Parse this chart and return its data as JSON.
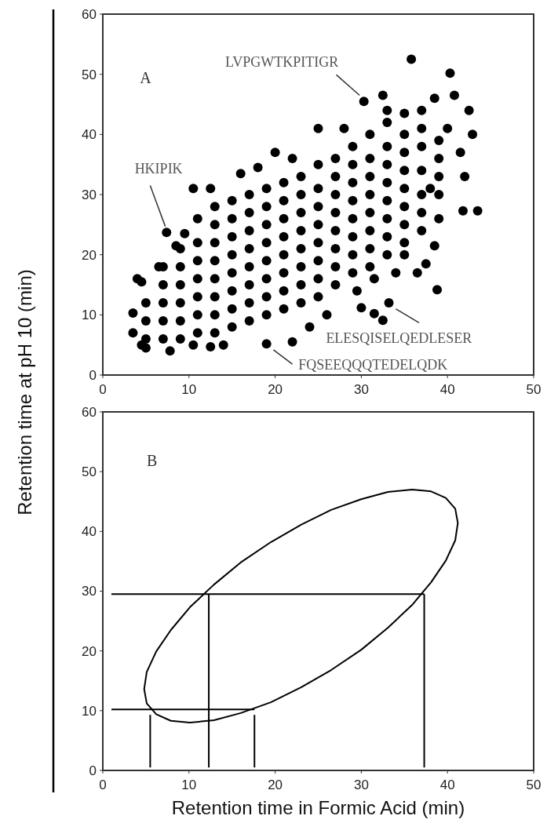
{
  "chart_data": [
    {
      "type": "scatter",
      "ylabel": "Retention time at pH 10 (min)",
      "xlim": [
        0,
        50
      ],
      "ylim": [
        0,
        60
      ],
      "xticks": [
        0,
        10,
        20,
        30,
        40,
        50
      ],
      "yticks": [
        0,
        10,
        20,
        30,
        40,
        50,
        60
      ],
      "marker": "circle",
      "grid": false,
      "annotations": [
        "A",
        {
          "text": "LVPGWTKPITIGR",
          "x": 30.3,
          "y": 45.5
        },
        {
          "text": "HKIPIK",
          "x": 7.4,
          "y": 23.7
        },
        {
          "text": "ELESQISELQEDLESER",
          "x": 33.2,
          "y": 12
        },
        {
          "text": "FQSEEQQQTEDELQDK",
          "x": 19,
          "y": 5.2
        }
      ],
      "series": [
        {
          "color": "#000000",
          "x": [
            3.5,
            3.5,
            4,
            4.5,
            4.5,
            5,
            6.5,
            7.4,
            7.8,
            8.5,
            9.5,
            10.5,
            12.5,
            10.5,
            12.5,
            14,
            16,
            18,
            19,
            20,
            22,
            22,
            24,
            25,
            26,
            28,
            29.5,
            30,
            30.3,
            31.5,
            32.5,
            33.2,
            32.5,
            33,
            35.8,
            35,
            36.5,
            37,
            37.5,
            38,
            38.8,
            38.5,
            40.3,
            40.8,
            42.5,
            42.9,
            41.8,
            43.5,
            41.5,
            42,
            39,
            40,
            38.5,
            34,
            35,
            31.5,
            5,
            5,
            5,
            7,
            7,
            7,
            7,
            7,
            9,
            9,
            9,
            9,
            9,
            9,
            11,
            11,
            11,
            11,
            11,
            11,
            11,
            13,
            13,
            13,
            13,
            13,
            13,
            13,
            13,
            15,
            15,
            15,
            15,
            15,
            15,
            15,
            15,
            17,
            17,
            17,
            17,
            17,
            17,
            17,
            17,
            19,
            19,
            19,
            19,
            19,
            19,
            19,
            19,
            21,
            21,
            21,
            21,
            21,
            21,
            21,
            21,
            23,
            23,
            23,
            23,
            23,
            23,
            23,
            23,
            25,
            25,
            25,
            25,
            25,
            25,
            25,
            25,
            27,
            27,
            27,
            27,
            27,
            27,
            27,
            27,
            29,
            29,
            29,
            29,
            29,
            29,
            29,
            29,
            31,
            31,
            31,
            31,
            31,
            31,
            31,
            31,
            33,
            33,
            33,
            33,
            33,
            33,
            33,
            33,
            35,
            35,
            35,
            35,
            35,
            35,
            35,
            37,
            37,
            37,
            37,
            37,
            37,
            39,
            39,
            39,
            39
          ],
          "values": [
            10.3,
            7,
            16,
            15.5,
            5,
            4.5,
            18,
            23.7,
            4,
            21.5,
            23.5,
            31,
            31,
            5,
            4.7,
            5,
            33.5,
            34.5,
            5.2,
            37,
            5.5,
            36,
            8,
            41,
            10,
            41,
            14,
            11.2,
            45.5,
            10.2,
            9.1,
            12,
            46.5,
            44,
            52.5,
            43.5,
            17,
            44,
            18.5,
            31,
            14.2,
            46,
            50.2,
            46.5,
            44,
            40,
            27.3,
            27.3,
            37,
            33,
            39,
            41,
            21.5,
            17,
            20,
            16,
            6,
            9,
            12,
            6,
            9,
            12,
            15,
            18,
            6,
            9,
            12,
            15,
            18,
            21,
            7,
            10,
            13,
            16,
            19,
            22,
            26,
            7,
            10,
            13,
            16,
            19,
            22,
            25,
            28,
            8,
            11,
            14,
            17,
            20,
            23,
            26,
            29,
            9,
            12,
            15,
            18,
            21,
            24,
            27,
            30,
            10,
            13,
            16,
            19,
            22,
            25,
            28,
            31,
            11,
            14,
            17,
            20,
            23,
            26,
            29,
            32,
            12,
            15,
            18,
            21,
            24,
            27,
            30,
            33,
            13,
            16,
            19,
            22,
            25,
            28,
            31,
            35,
            15,
            18,
            21,
            24,
            27,
            30,
            33,
            36,
            17,
            20,
            23,
            26,
            29,
            32,
            35,
            38,
            18,
            21,
            24,
            27,
            30,
            33,
            36,
            40,
            20,
            23,
            26,
            29,
            32,
            35,
            38,
            42,
            22,
            25,
            28,
            31,
            34,
            37,
            40,
            24,
            27,
            30,
            34,
            38,
            41,
            26,
            30,
            33,
            36
          ]
        }
      ]
    },
    {
      "type": "line",
      "xlabel": "Retention time in Formic Acid (min)",
      "xlim": [
        0,
        50
      ],
      "ylim": [
        0,
        60
      ],
      "xticks": [
        0,
        10,
        20,
        30,
        40,
        50
      ],
      "yticks": [
        0,
        10,
        20,
        30,
        40,
        50,
        60
      ],
      "line_style": "solid",
      "grid": false,
      "annotations": [
        "B"
      ],
      "series": [
        {
          "color": "#000000",
          "x": [
            41.2,
            40.9,
            39.8,
            38.1,
            35.9,
            33.1,
            30,
            26.5,
            23,
            19.5,
            16,
            12.9,
            10.1,
            7.9,
            6.2,
            5.1,
            4.8,
            5.1,
            6.2,
            7.9,
            10.1,
            12.9,
            16,
            19.5,
            23,
            26.5,
            30,
            33.1,
            35.9,
            38.1,
            39.8,
            40.9,
            41.2,
            40.9
          ],
          "values": [
            41.4,
            43.8,
            45.6,
            46.7,
            47,
            46.6,
            45.4,
            43.6,
            41.1,
            38.2,
            34.8,
            31.1,
            27.3,
            23.5,
            19.9,
            16.5,
            13.6,
            11.2,
            9.4,
            8.3,
            8,
            8.4,
            9.6,
            11.4,
            13.9,
            16.8,
            20.2,
            23.9,
            27.7,
            31.5,
            35.1,
            38.5,
            41.4,
            43.8
          ]
        },
        {
          "color": "#000000",
          "x": [
            1,
            37.3
          ],
          "values": [
            29.5,
            29.5
          ]
        },
        {
          "color": "#000000",
          "x": [
            12.3,
            12.3
          ],
          "values": [
            0.5,
            29.5
          ]
        },
        {
          "color": "#000000",
          "x": [
            37.3,
            37.3
          ],
          "values": [
            0.5,
            29.5
          ]
        },
        {
          "color": "#000000",
          "x": [
            1,
            17.6
          ],
          "values": [
            10.2,
            10.2
          ]
        },
        {
          "color": "#000000",
          "x": [
            5.5,
            5.5
          ],
          "values": [
            0.5,
            9.3
          ]
        },
        {
          "color": "#000000",
          "x": [
            17.6,
            17.6
          ],
          "values": [
            0.5,
            9.3
          ]
        }
      ]
    }
  ]
}
